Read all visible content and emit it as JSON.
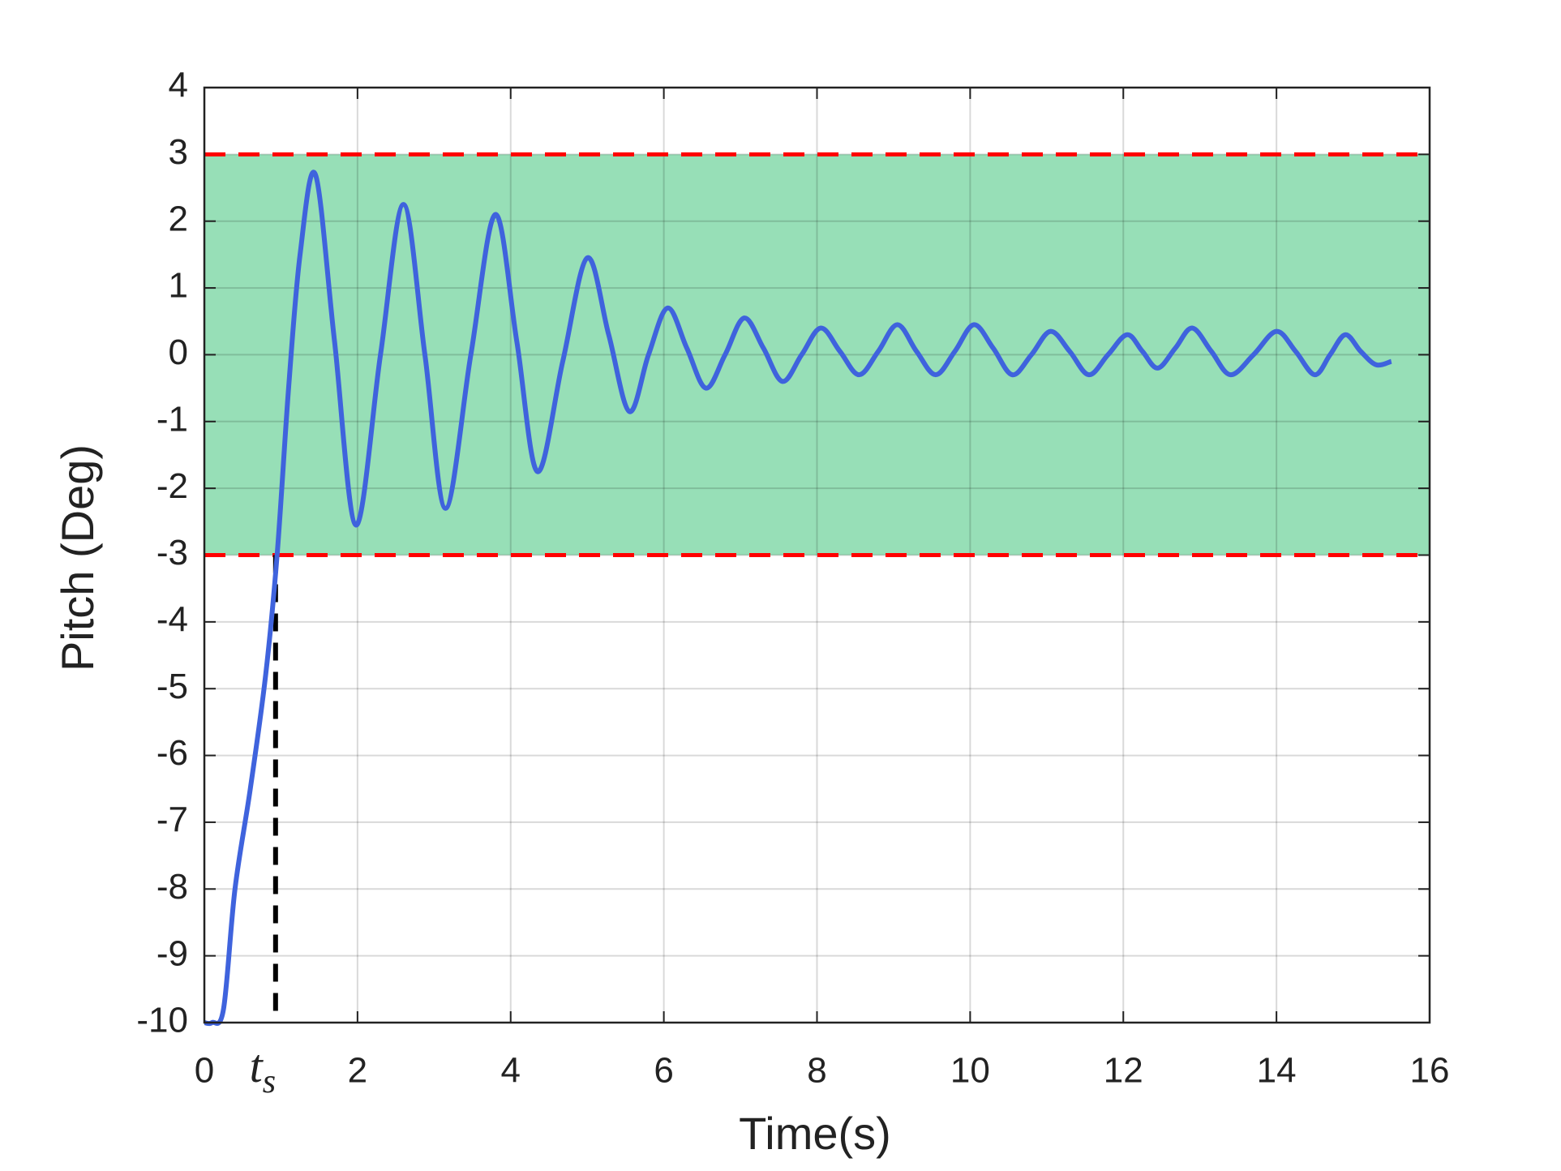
{
  "chart_data": {
    "type": "line",
    "xlabel": "Time(s)",
    "ylabel": "Pitch (Deg)",
    "xlim": [
      0,
      16
    ],
    "xticks": [
      0,
      2,
      4,
      6,
      8,
      10,
      12,
      14,
      16
    ],
    "ylim": [
      -10,
      4
    ],
    "yticks": [
      -10,
      -9,
      -8,
      -7,
      -6,
      -5,
      -4,
      -3,
      -2,
      -1,
      0,
      1,
      2,
      3,
      4
    ],
    "grid": true,
    "band": {
      "range": [
        -3,
        3
      ],
      "color": "#97dfb7",
      "edge_color": "#ff0000"
    },
    "annotation": {
      "label": "t",
      "subscript": "s",
      "x": 0.93,
      "color": "#000000"
    },
    "series": [
      {
        "color": "#3f63dd",
        "x": [
          0,
          0.1,
          0.25,
          0.4,
          0.6,
          0.8,
          0.95,
          1.1,
          1.25,
          1.45,
          1.7,
          1.98,
          2.3,
          2.6,
          2.88,
          3.15,
          3.48,
          3.8,
          4.08,
          4.35,
          4.68,
          5.0,
          5.28,
          5.55,
          5.8,
          6.05,
          6.3,
          6.55,
          6.8,
          7.05,
          7.3,
          7.55,
          7.8,
          8.05,
          8.3,
          8.55,
          8.8,
          9.05,
          9.3,
          9.55,
          9.8,
          10.05,
          10.3,
          10.55,
          10.8,
          11.05,
          11.3,
          11.55,
          11.8,
          12.05,
          12.25,
          12.45,
          12.68,
          12.9,
          13.15,
          13.4,
          13.7,
          14.0,
          14.25,
          14.5,
          14.7,
          14.9,
          15.1,
          15.3,
          15.5
        ],
        "values": [
          -10,
          -10,
          -9.8,
          -8,
          -6.5,
          -4.8,
          -3,
          -0.5,
          1.5,
          2.7,
          0.2,
          -2.55,
          0,
          2.25,
          0,
          -2.3,
          0,
          2.1,
          0.2,
          -1.75,
          -0.1,
          1.45,
          0.3,
          -0.85,
          0,
          0.7,
          0.1,
          -0.5,
          0,
          0.55,
          0.1,
          -0.4,
          0,
          0.4,
          0.05,
          -0.3,
          0.05,
          0.45,
          0.05,
          -0.3,
          0.05,
          0.45,
          0.1,
          -0.3,
          0,
          0.35,
          0.05,
          -0.3,
          0,
          0.3,
          0.05,
          -0.2,
          0.1,
          0.4,
          0.05,
          -0.3,
          0,
          0.35,
          0.05,
          -0.3,
          0,
          0.3,
          0.05,
          -0.15,
          -0.1
        ]
      }
    ]
  }
}
